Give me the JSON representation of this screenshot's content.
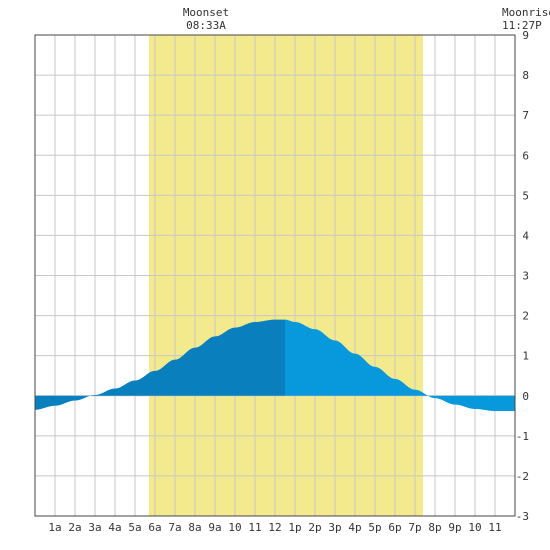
{
  "chart_data": {
    "type": "area",
    "title": "",
    "xlabel": "",
    "ylabel": "",
    "x_range": [
      0,
      24
    ],
    "ylim": [
      -3,
      9
    ],
    "grid": true,
    "x_tick_labels": [
      "1a",
      "2a",
      "3a",
      "4a",
      "5a",
      "6a",
      "7a",
      "8a",
      "9a",
      "10",
      "11",
      "12",
      "1p",
      "2p",
      "3p",
      "4p",
      "5p",
      "6p",
      "7p",
      "8p",
      "9p",
      "10",
      "11"
    ],
    "y_tick_labels": [
      "-3",
      "-2",
      "-1",
      "0",
      "1",
      "2",
      "3",
      "4",
      "5",
      "6",
      "7",
      "8",
      "9"
    ],
    "daylight": {
      "start_hour": 5.7,
      "end_hour": 19.4,
      "color": "#f2ea8c"
    },
    "events": [
      {
        "label": "Moonset",
        "time": "08:33A",
        "hour": 8.55
      },
      {
        "label": "Moonrise",
        "time": "11:27P",
        "hour": 23.45
      }
    ],
    "series": [
      {
        "x": [
          0,
          1,
          2,
          3,
          4,
          5,
          6,
          7,
          8,
          9,
          10,
          11,
          12,
          12.5,
          13,
          14,
          15,
          16,
          17,
          18,
          19,
          20,
          21,
          22,
          23,
          24
        ],
        "values": [
          -0.35,
          -0.25,
          -0.12,
          0.02,
          0.18,
          0.38,
          0.62,
          0.9,
          1.2,
          1.48,
          1.7,
          1.84,
          1.9,
          1.9,
          1.84,
          1.66,
          1.38,
          1.05,
          0.72,
          0.42,
          0.15,
          -0.06,
          -0.22,
          -0.33,
          -0.38,
          -0.38
        ]
      }
    ],
    "split_hour": 12.5,
    "colors": {
      "rising": "#0a7fbd",
      "falling": "#0898dc",
      "grid": "#c8c8c8",
      "border": "#444444"
    }
  }
}
